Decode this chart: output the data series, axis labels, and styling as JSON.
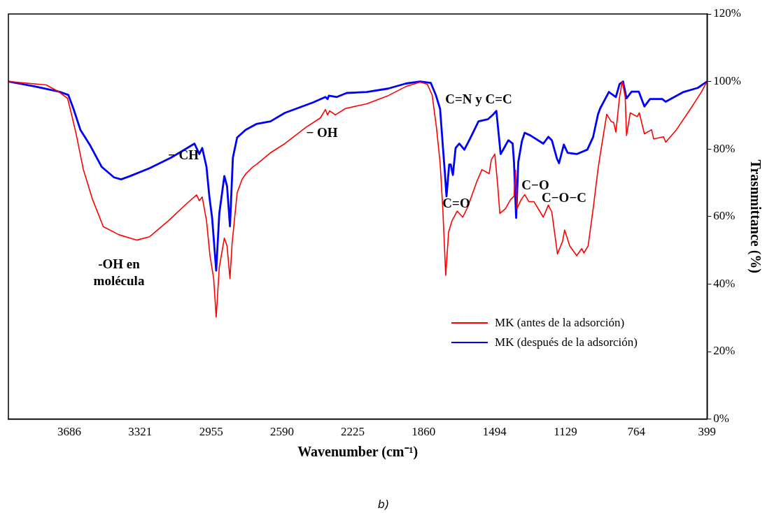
{
  "chart_data": {
    "type": "line",
    "xlabel": "Wavenumber (cm⁻¹)",
    "ylabel": "Trasnmittance (%)",
    "xlim": [
      4000,
      399
    ],
    "xticks": [
      3686,
      3321,
      2955,
      2590,
      2225,
      1860,
      1494,
      1129,
      764,
      399
    ],
    "ylim": [
      0,
      120
    ],
    "yticks": [
      {
        "value": 0,
        "label": "0%"
      },
      {
        "value": 20,
        "label": "20%"
      },
      {
        "value": 40,
        "label": "40%"
      },
      {
        "value": 60,
        "label": "60%"
      },
      {
        "value": 80,
        "label": "80%"
      },
      {
        "value": 100,
        "label": "100%"
      },
      {
        "value": 120,
        "label": "120%"
      }
    ],
    "legend": "bottom right",
    "series": [
      {
        "name": "MK (antes de la adsorción)",
        "color": "#ff0000",
        "x": [
          4000,
          3805,
          3739,
          3695,
          3676,
          3651,
          3614,
          3566,
          3511,
          3430,
          3339,
          3273,
          3174,
          3078,
          3030,
          3016,
          3001,
          2979,
          2961,
          2942,
          2929,
          2913,
          2887,
          2873,
          2858,
          2847,
          2821,
          2796,
          2777,
          2740,
          2722,
          2649,
          2575,
          2465,
          2392,
          2366,
          2355,
          2344,
          2315,
          2263,
          2153,
          2043,
          1951,
          1878,
          1841,
          1816,
          1794,
          1775,
          1761,
          1746,
          1731,
          1713,
          1687,
          1658,
          1632,
          1584,
          1559,
          1522,
          1511,
          1493,
          1478,
          1467,
          1438,
          1412,
          1394,
          1386,
          1379,
          1357,
          1339,
          1317,
          1291,
          1243,
          1217,
          1199,
          1170,
          1144,
          1133,
          1107,
          1071,
          1045,
          1034,
          1012,
          986,
          961,
          950,
          931,
          916,
          894,
          880,
          869,
          850,
          836,
          821,
          814,
          795,
          759,
          748,
          722,
          685,
          674,
          623,
          612,
          557,
          483,
          428,
          399
        ],
        "values": [
          100,
          99,
          96.9,
          95,
          90.6,
          84.5,
          74,
          65,
          57,
          54.6,
          53,
          54,
          58.8,
          64,
          66.4,
          64.7,
          65.8,
          58.8,
          48.4,
          41.6,
          30.2,
          45,
          53.6,
          51.3,
          41.6,
          52,
          67,
          71,
          72.6,
          74.7,
          75.4,
          78.9,
          81.6,
          86.5,
          89.2,
          91.7,
          90.1,
          91.3,
          90.1,
          92,
          93.4,
          95.8,
          98.5,
          99.8,
          99.2,
          96,
          86.5,
          76,
          62.3,
          42.6,
          55.4,
          58.8,
          61.6,
          59.8,
          62.9,
          70.6,
          73.9,
          72.7,
          76.8,
          78.5,
          69.2,
          60.9,
          62.3,
          65,
          66,
          73.7,
          62.3,
          65,
          66.5,
          64.4,
          64.4,
          59.8,
          63.4,
          61.3,
          48.9,
          52.6,
          56,
          51.3,
          48.4,
          50.5,
          49.2,
          51.3,
          62.3,
          74,
          78.2,
          85,
          90.3,
          88.2,
          87.8,
          85,
          95.4,
          100,
          95.4,
          84,
          90.7,
          89.6,
          90.7,
          84.5,
          85.7,
          83,
          83.6,
          82,
          85.7,
          92,
          96.9,
          100
        ]
      },
      {
        "name": "MK (después de la adsorción)",
        "color": "#0000ff",
        "x": [
          4000,
          3860,
          3739,
          3691,
          3665,
          3629,
          3577,
          3519,
          3456,
          3419,
          3372,
          3273,
          3163,
          3078,
          3041,
          3016,
          3001,
          2979,
          2964,
          2950,
          2929,
          2913,
          2887,
          2873,
          2858,
          2843,
          2821,
          2777,
          2722,
          2649,
          2575,
          2429,
          2366,
          2355,
          2348,
          2307,
          2256,
          2153,
          2043,
          1951,
          1878,
          1823,
          1797,
          1775,
          1761,
          1750,
          1742,
          1728,
          1720,
          1709,
          1695,
          1676,
          1650,
          1621,
          1577,
          1529,
          1500,
          1485,
          1474,
          1463,
          1445,
          1423,
          1401,
          1394,
          1383,
          1372,
          1353,
          1339,
          1309,
          1243,
          1217,
          1199,
          1173,
          1162,
          1137,
          1118,
          1071,
          1016,
          986,
          961,
          950,
          905,
          869,
          850,
          832,
          814,
          788,
          751,
          722,
          693,
          630,
          612,
          520,
          447,
          399
        ],
        "values": [
          100,
          98.5,
          97,
          96,
          92,
          85.7,
          80.9,
          74.7,
          71.6,
          71,
          72,
          74.3,
          77.4,
          80.3,
          81.6,
          78.5,
          80.3,
          74.7,
          65.8,
          59.6,
          44,
          60.9,
          72,
          69,
          57.1,
          77.4,
          83.4,
          85.7,
          87.4,
          88.2,
          90.7,
          93.8,
          95.4,
          94.8,
          95.8,
          95.4,
          96.6,
          96.9,
          97.9,
          99.4,
          100,
          99.6,
          96,
          91.9,
          81,
          72.7,
          66,
          75.4,
          75.4,
          72.3,
          80.3,
          81.6,
          79.8,
          83,
          88.2,
          88.8,
          90.3,
          91.3,
          85,
          78.5,
          80.3,
          82.6,
          81.6,
          76.1,
          59.6,
          76.1,
          82.4,
          84.8,
          84,
          81.6,
          83.6,
          82.6,
          77.2,
          75.8,
          81.3,
          78.9,
          78.5,
          79.8,
          83.6,
          90.3,
          92,
          96.9,
          95.4,
          99.2,
          100,
          95,
          97,
          97,
          92.6,
          94.8,
          94.8,
          94,
          96.9,
          98.1,
          100
        ]
      }
    ],
    "annotations": [
      "-OH en molécula",
      "− CH",
      "− OH",
      "C=N y C=C",
      "C=O",
      "C−O",
      "C−O−C",
      "b)"
    ]
  }
}
